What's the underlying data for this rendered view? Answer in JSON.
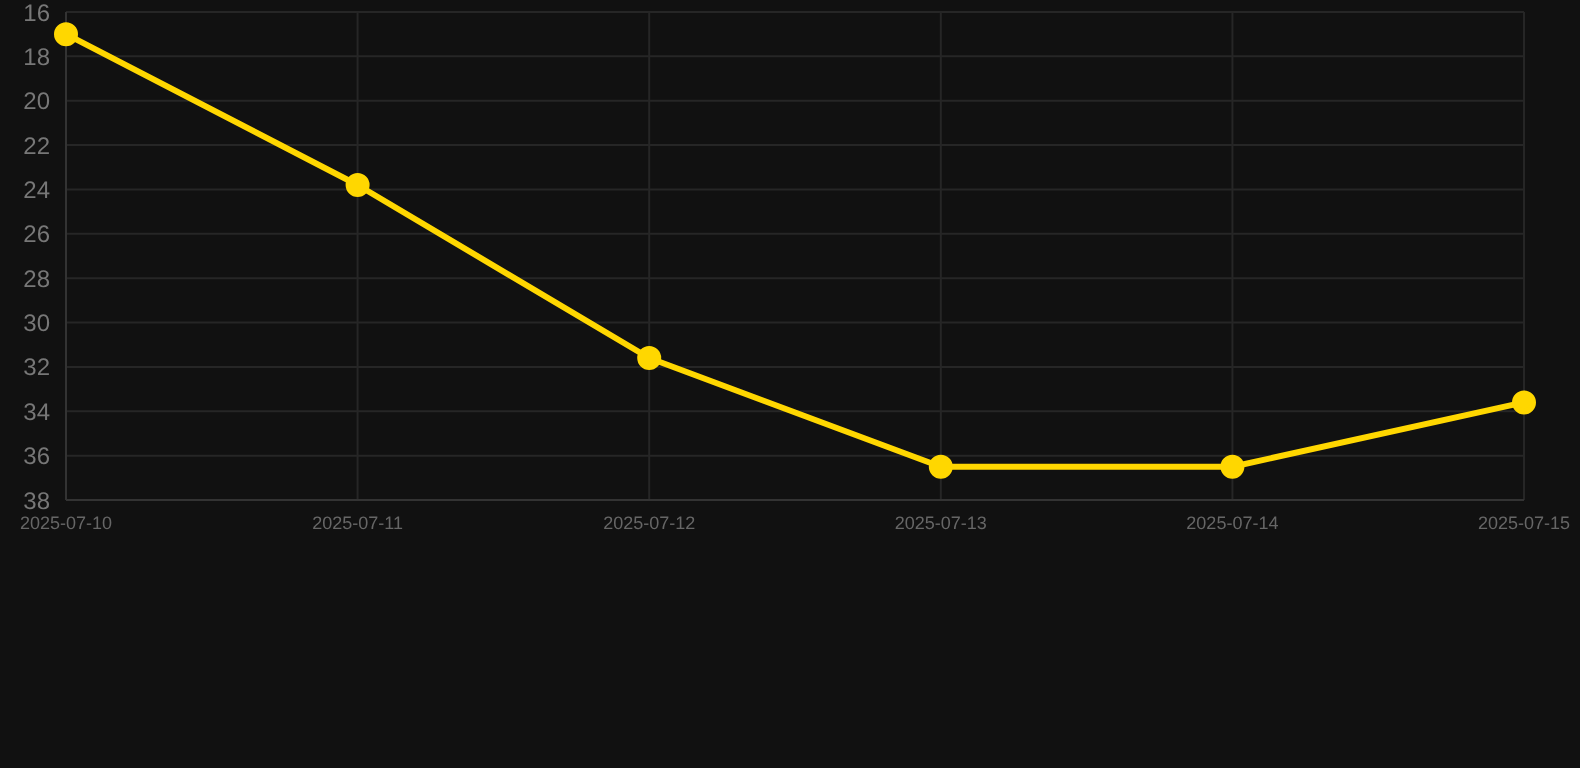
{
  "chart_data": {
    "type": "line",
    "categories": [
      "2025-07-10",
      "2025-07-11",
      "2025-07-12",
      "2025-07-13",
      "2025-07-14",
      "2025-07-15"
    ],
    "series": [
      {
        "color": "#ffd700",
        "values": [
          17,
          23.8,
          31.6,
          36.5,
          36.5,
          33.6
        ]
      }
    ],
    "ylim": [
      38,
      16
    ],
    "yticks": [
      16,
      18,
      20,
      22,
      24,
      26,
      28,
      30,
      32,
      34,
      36,
      38
    ],
    "grid": true,
    "marker": "circle",
    "line_style": "solid"
  }
}
